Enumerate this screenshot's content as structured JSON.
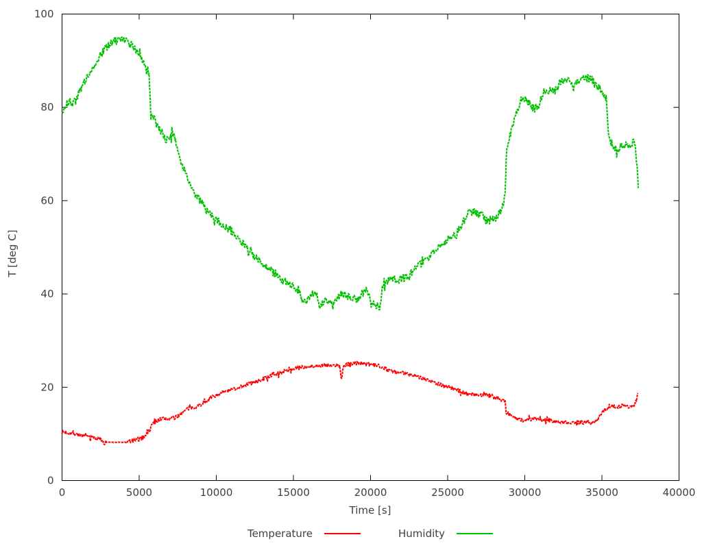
{
  "figure": {
    "background": "#ffffff",
    "axis_color": "#000000",
    "text_color": "#404040"
  },
  "chart_data": {
    "type": "line",
    "title": "",
    "xlabel": "Time [s]",
    "ylabel": "T [deg C]",
    "xlim": [
      0,
      40000
    ],
    "ylim": [
      0,
      100
    ],
    "xticks": [
      0,
      5000,
      10000,
      15000,
      20000,
      25000,
      30000,
      35000,
      40000
    ],
    "yticks": [
      0,
      20,
      40,
      60,
      80,
      100
    ],
    "grid": false,
    "legend_position": "bottom-center",
    "series": [
      {
        "name": "Temperature",
        "color": "#ff0000",
        "noise": 0.4,
        "points": [
          [
            0,
            10.4
          ],
          [
            300,
            10.3
          ],
          [
            600,
            10.1
          ],
          [
            900,
            10.0
          ],
          [
            1300,
            9.6
          ],
          [
            1700,
            9.4
          ],
          [
            2100,
            9.2
          ],
          [
            2500,
            8.8
          ],
          [
            2750,
            8.3
          ],
          [
            2870,
            8.2,
            0.04
          ],
          [
            4150,
            8.2
          ],
          [
            4300,
            8.5
          ],
          [
            4500,
            8.4
          ],
          [
            4700,
            8.7
          ],
          [
            4900,
            8.6
          ],
          [
            5100,
            9.0
          ],
          [
            5300,
            9.3
          ],
          [
            5500,
            10.2
          ],
          [
            5700,
            10.7
          ],
          [
            5780,
            11.9
          ],
          [
            6000,
            12.5
          ],
          [
            6300,
            13.1
          ],
          [
            6600,
            13.3
          ],
          [
            6900,
            13.2
          ],
          [
            7100,
            13.5
          ],
          [
            7300,
            13.3
          ],
          [
            7500,
            13.9
          ],
          [
            7800,
            14.6
          ],
          [
            8100,
            15.3
          ],
          [
            8400,
            15.6
          ],
          [
            8700,
            15.8
          ],
          [
            9000,
            16.3
          ],
          [
            9400,
            17.2
          ],
          [
            9800,
            18.0
          ],
          [
            10300,
            18.7
          ],
          [
            10900,
            19.4
          ],
          [
            11400,
            19.9
          ],
          [
            12000,
            20.6
          ],
          [
            12600,
            21.2
          ],
          [
            13200,
            22.0
          ],
          [
            13800,
            22.7
          ],
          [
            14400,
            23.4
          ],
          [
            15000,
            24.0
          ],
          [
            15600,
            24.3
          ],
          [
            16200,
            24.5
          ],
          [
            16800,
            24.7
          ],
          [
            17400,
            24.6
          ],
          [
            18000,
            24.6
          ],
          [
            18110,
            21.6
          ],
          [
            18250,
            24.6
          ],
          [
            18700,
            25.0
          ],
          [
            19200,
            25.2
          ],
          [
            19700,
            25.0
          ],
          [
            20200,
            24.8
          ],
          [
            20700,
            24.5
          ],
          [
            21200,
            23.6
          ],
          [
            21700,
            23.1
          ],
          [
            22300,
            23.0
          ],
          [
            22900,
            22.5
          ],
          [
            23500,
            21.8
          ],
          [
            24100,
            21.1
          ],
          [
            24700,
            20.4
          ],
          [
            25300,
            19.8
          ],
          [
            25900,
            19.0
          ],
          [
            26500,
            18.5
          ],
          [
            27000,
            18.3
          ],
          [
            27500,
            18.5
          ],
          [
            28000,
            18.0
          ],
          [
            28400,
            17.5
          ],
          [
            28730,
            17.0
          ],
          [
            28800,
            14.6
          ],
          [
            29100,
            13.9
          ],
          [
            29500,
            13.2
          ],
          [
            29900,
            12.9
          ],
          [
            30300,
            13.1
          ],
          [
            30700,
            13.2
          ],
          [
            31100,
            12.9
          ],
          [
            31500,
            13.0
          ],
          [
            32000,
            12.7
          ],
          [
            32500,
            12.5
          ],
          [
            33000,
            12.5
          ],
          [
            33500,
            12.4
          ],
          [
            34000,
            12.5
          ],
          [
            34400,
            12.4
          ],
          [
            34700,
            12.7
          ],
          [
            34900,
            14.2
          ],
          [
            35100,
            15.1
          ],
          [
            35400,
            15.4
          ],
          [
            35600,
            16.1
          ],
          [
            35900,
            15.7
          ],
          [
            36200,
            15.9
          ],
          [
            36500,
            16.2
          ],
          [
            36800,
            15.8
          ],
          [
            37000,
            16.0
          ],
          [
            37150,
            16.4
          ],
          [
            37280,
            17.8
          ],
          [
            37350,
            19.2
          ]
        ]
      },
      {
        "name": "Humidity",
        "color": "#00c000",
        "noise": 0.8,
        "points": [
          [
            0,
            78.3
          ],
          [
            250,
            80.7
          ],
          [
            500,
            81.2
          ],
          [
            700,
            80.7
          ],
          [
            950,
            82.2
          ],
          [
            1250,
            84.2
          ],
          [
            1550,
            86.0
          ],
          [
            1850,
            87.8
          ],
          [
            2150,
            89.5
          ],
          [
            2450,
            91.1
          ],
          [
            2750,
            92.4
          ],
          [
            3050,
            93.4
          ],
          [
            3350,
            94.1
          ],
          [
            3650,
            94.4
          ],
          [
            3950,
            94.5
          ],
          [
            4250,
            94.1
          ],
          [
            4550,
            93.2
          ],
          [
            4850,
            92.1
          ],
          [
            5150,
            90.3
          ],
          [
            5450,
            88.7
          ],
          [
            5650,
            87.3
          ],
          [
            5760,
            79.0
          ],
          [
            5950,
            77.7
          ],
          [
            6150,
            76.2
          ],
          [
            6450,
            74.7
          ],
          [
            6650,
            73.3
          ],
          [
            6950,
            73.1
          ],
          [
            7150,
            74.5
          ],
          [
            7350,
            72.7
          ],
          [
            7600,
            69.8
          ],
          [
            7900,
            66.6
          ],
          [
            8200,
            64.3
          ],
          [
            8600,
            61.8
          ],
          [
            9000,
            59.7
          ],
          [
            9500,
            57.4
          ],
          [
            10000,
            55.9
          ],
          [
            10500,
            54.6
          ],
          [
            11000,
            53.5
          ],
          [
            11500,
            51.8
          ],
          [
            12000,
            50.0
          ],
          [
            12400,
            48.3
          ],
          [
            12900,
            46.6
          ],
          [
            13400,
            45.3
          ],
          [
            13900,
            44.2
          ],
          [
            14400,
            42.7
          ],
          [
            14900,
            42.0
          ],
          [
            15300,
            40.6
          ],
          [
            15700,
            38.1
          ],
          [
            16100,
            39.4
          ],
          [
            16400,
            40.9
          ],
          [
            16700,
            37.4
          ],
          [
            17000,
            38.6
          ],
          [
            17300,
            38.4
          ],
          [
            17600,
            37.5
          ],
          [
            17900,
            39.3
          ],
          [
            18200,
            40.4
          ],
          [
            18500,
            39.5
          ],
          [
            18800,
            38.7
          ],
          [
            19100,
            38.7
          ],
          [
            19400,
            39.8
          ],
          [
            19700,
            40.8
          ],
          [
            20000,
            38.8
          ],
          [
            20300,
            37.7
          ],
          [
            20600,
            37.0
          ],
          [
            20780,
            41.6
          ],
          [
            21100,
            42.9
          ],
          [
            21600,
            43.1
          ],
          [
            22100,
            43.3
          ],
          [
            22600,
            44.5
          ],
          [
            23100,
            46.0
          ],
          [
            23600,
            47.4
          ],
          [
            24100,
            49.0
          ],
          [
            24600,
            50.3
          ],
          [
            25100,
            52.0
          ],
          [
            25600,
            53.2
          ],
          [
            26000,
            55.4
          ],
          [
            26400,
            57.8
          ],
          [
            26800,
            57.4
          ],
          [
            27200,
            56.9
          ],
          [
            27600,
            55.8
          ],
          [
            28000,
            55.9
          ],
          [
            28300,
            57.0
          ],
          [
            28600,
            58.9
          ],
          [
            28740,
            61.4
          ],
          [
            28810,
            71.3
          ],
          [
            29050,
            74.2
          ],
          [
            29350,
            77.6
          ],
          [
            29700,
            81.4
          ],
          [
            30000,
            81.7
          ],
          [
            30300,
            81.0
          ],
          [
            30600,
            79.6
          ],
          [
            30900,
            79.8
          ],
          [
            31150,
            83.1
          ],
          [
            31500,
            83.5
          ],
          [
            32000,
            83.7
          ],
          [
            32300,
            85.4
          ],
          [
            32700,
            86.1
          ],
          [
            33100,
            84.9
          ],
          [
            33500,
            85.7
          ],
          [
            33900,
            86.4
          ],
          [
            34300,
            86.1
          ],
          [
            34700,
            84.6
          ],
          [
            35000,
            83.4
          ],
          [
            35280,
            82.1
          ],
          [
            35420,
            73.6
          ],
          [
            35700,
            71.9
          ],
          [
            36000,
            70.9
          ],
          [
            36300,
            71.6
          ],
          [
            36600,
            72.3
          ],
          [
            36900,
            71.3
          ],
          [
            37050,
            73.9
          ],
          [
            37200,
            70.1
          ],
          [
            37300,
            66.0
          ],
          [
            37380,
            62.3
          ]
        ]
      }
    ]
  },
  "legend": {
    "items": [
      {
        "label": "Temperature"
      },
      {
        "label": "Humidity"
      }
    ]
  }
}
